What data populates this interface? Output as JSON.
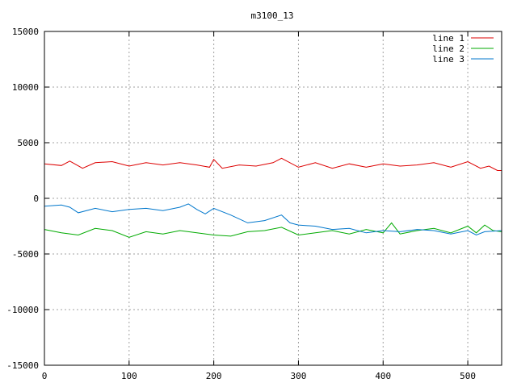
{
  "chart_data": {
    "type": "line",
    "title": "m3100_13",
    "xlabel": "",
    "ylabel": "",
    "xlim": [
      0,
      540
    ],
    "ylim": [
      -15000,
      15000
    ],
    "x_ticks": [
      0,
      100,
      200,
      300,
      400,
      500
    ],
    "y_ticks": [
      -15000,
      -10000,
      -5000,
      0,
      5000,
      10000,
      15000
    ],
    "grid": true,
    "legend_position": "top-right",
    "series": [
      {
        "name": "line 1",
        "color": "#dd0000",
        "x": [
          0,
          20,
          30,
          45,
          60,
          80,
          100,
          120,
          140,
          160,
          180,
          195,
          200,
          210,
          230,
          250,
          270,
          280,
          300,
          320,
          340,
          360,
          380,
          400,
          420,
          440,
          460,
          480,
          500,
          515,
          525,
          535,
          540
        ],
        "y": [
          3100,
          2950,
          3350,
          2700,
          3200,
          3300,
          2900,
          3200,
          3000,
          3200,
          3000,
          2800,
          3500,
          2700,
          3000,
          2900,
          3200,
          3600,
          2800,
          3200,
          2700,
          3100,
          2800,
          3100,
          2900,
          3000,
          3200,
          2800,
          3300,
          2700,
          2900,
          2500,
          2500
        ]
      },
      {
        "name": "line 2",
        "color": "#00aa00",
        "x": [
          0,
          20,
          40,
          60,
          80,
          100,
          120,
          140,
          160,
          180,
          200,
          220,
          240,
          260,
          280,
          300,
          320,
          340,
          360,
          380,
          400,
          410,
          420,
          440,
          460,
          480,
          500,
          510,
          520,
          530,
          540
        ],
        "y": [
          -2800,
          -3100,
          -3300,
          -2700,
          -2900,
          -3500,
          -3000,
          -3200,
          -2900,
          -3100,
          -3300,
          -3400,
          -3000,
          -2900,
          -2600,
          -3300,
          -3100,
          -2900,
          -3200,
          -2800,
          -3100,
          -2200,
          -3200,
          -2900,
          -2700,
          -3100,
          -2500,
          -3100,
          -2400,
          -2900,
          -3000
        ]
      },
      {
        "name": "line 3",
        "color": "#0077cc",
        "x": [
          0,
          20,
          30,
          40,
          60,
          80,
          100,
          120,
          140,
          160,
          170,
          180,
          190,
          200,
          220,
          240,
          260,
          280,
          290,
          300,
          320,
          340,
          360,
          380,
          400,
          420,
          440,
          460,
          480,
          500,
          510,
          520,
          540
        ],
        "y": [
          -700,
          -600,
          -800,
          -1300,
          -900,
          -1200,
          -1000,
          -900,
          -1100,
          -800,
          -500,
          -1000,
          -1400,
          -900,
          -1500,
          -2200,
          -2000,
          -1500,
          -2200,
          -2400,
          -2500,
          -2800,
          -2700,
          -3100,
          -2900,
          -3000,
          -2800,
          -2900,
          -3200,
          -2900,
          -3300,
          -3000,
          -2900
        ]
      }
    ]
  }
}
